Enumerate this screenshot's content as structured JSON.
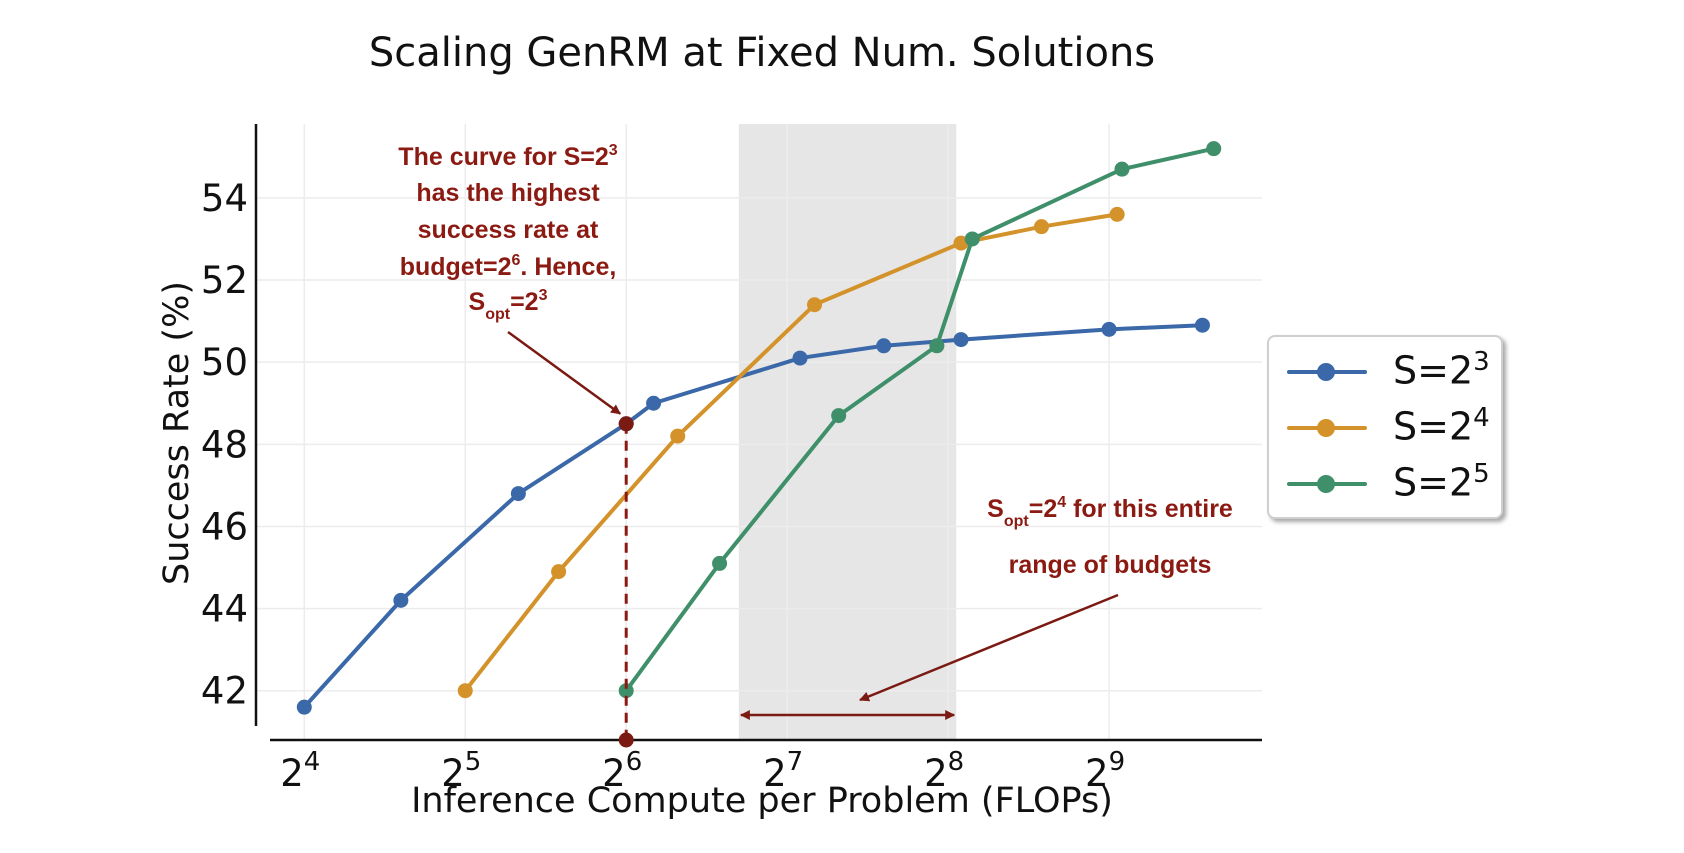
{
  "chart_data": {
    "type": "line",
    "title": "Scaling GenRM at Fixed Num. Solutions",
    "xlabel": "Inference Compute per Problem (FLOPs)",
    "ylabel": "Success Rate (%)",
    "x_scale": "log2",
    "xlim_exponent": [
      3.7,
      9.95
    ],
    "ylim": [
      40.8,
      55.8
    ],
    "x_ticks": [
      {
        "base": "2",
        "exp": "4",
        "value": 4
      },
      {
        "base": "2",
        "exp": "5",
        "value": 5
      },
      {
        "base": "2",
        "exp": "6",
        "value": 6
      },
      {
        "base": "2",
        "exp": "7",
        "value": 7
      },
      {
        "base": "2",
        "exp": "8",
        "value": 8
      },
      {
        "base": "2",
        "exp": "9",
        "value": 9
      }
    ],
    "y_ticks": [
      42,
      44,
      46,
      48,
      50,
      52,
      54
    ],
    "grid": true,
    "legend_position": "right",
    "series": [
      {
        "name": "S=2^3",
        "label_base": "S=2",
        "label_exp": "3",
        "color": "#3a68a8",
        "x_exponent": [
          4.0,
          4.6,
          5.33,
          6.0,
          6.17,
          7.08,
          7.6,
          8.08,
          9.0,
          9.58
        ],
        "values": [
          41.6,
          44.2,
          46.8,
          48.5,
          49.0,
          50.1,
          50.4,
          50.55,
          50.8,
          50.9
        ]
      },
      {
        "name": "S=2^4",
        "label_base": "S=2",
        "label_exp": "4",
        "color": "#d4922a",
        "x_exponent": [
          5.0,
          5.58,
          6.32,
          7.17,
          8.08,
          8.58,
          9.05
        ],
        "values": [
          42.0,
          44.9,
          48.2,
          51.4,
          52.9,
          53.3,
          53.6
        ]
      },
      {
        "name": "S=2^5",
        "label_base": "S=2",
        "label_exp": "5",
        "color": "#3f8f6a",
        "x_exponent": [
          6.0,
          6.58,
          7.32,
          7.93,
          8.15,
          9.08,
          9.65
        ],
        "values": [
          42.0,
          45.1,
          48.7,
          50.4,
          53.0,
          54.7,
          55.2
        ]
      }
    ],
    "highlight_span_exponent": [
      6.7,
      8.05
    ],
    "marker_line": {
      "x_exponent": 6.0,
      "value": 48.5
    },
    "budget_arrow_exponent": [
      6.7,
      8.05
    ],
    "annotations": [
      {
        "lines": [
          "The curve for S=2^3",
          "has the highest",
          "success rate at",
          "budget=2^6. Hence,",
          "S_opt=2^3"
        ]
      },
      {
        "lines": [
          "S_opt=2^4 for this entire",
          "range of budgets"
        ]
      }
    ],
    "annotation_color": "#8b1a12"
  }
}
